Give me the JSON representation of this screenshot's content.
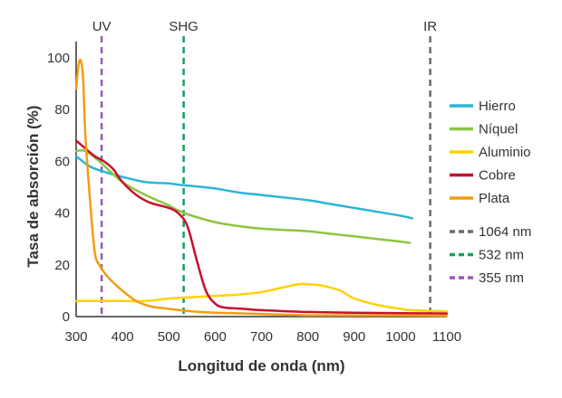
{
  "chart_data": {
    "type": "line",
    "title": "",
    "xlabel": "Longitud de onda (nm)",
    "ylabel": "Tasa de absorción (%)",
    "xlim": [
      300,
      1100
    ],
    "ylim": [
      0,
      100
    ],
    "xticks": [
      300,
      400,
      500,
      600,
      700,
      800,
      900,
      1000,
      1100
    ],
    "yticks": [
      0,
      20,
      40,
      60,
      80,
      100
    ],
    "grid": false,
    "legend_position": "right",
    "series": [
      {
        "name": "Hierro",
        "color": "#2bb5d8",
        "points": [
          [
            300,
            62
          ],
          [
            330,
            58
          ],
          [
            360,
            56
          ],
          [
            400,
            54
          ],
          [
            450,
            52
          ],
          [
            500,
            51.5
          ],
          [
            520,
            51
          ],
          [
            550,
            50.5
          ],
          [
            600,
            49.5
          ],
          [
            650,
            48
          ],
          [
            700,
            47
          ],
          [
            750,
            46
          ],
          [
            800,
            45
          ],
          [
            850,
            43.5
          ],
          [
            900,
            42
          ],
          [
            950,
            40.5
          ],
          [
            1000,
            39
          ],
          [
            1025,
            38
          ]
        ]
      },
      {
        "name": "Níquel",
        "color": "#8cc63f",
        "points": [
          [
            300,
            64
          ],
          [
            320,
            64
          ],
          [
            350,
            60
          ],
          [
            400,
            52
          ],
          [
            450,
            47
          ],
          [
            500,
            43
          ],
          [
            520,
            41
          ],
          [
            550,
            39
          ],
          [
            600,
            36.5
          ],
          [
            650,
            35
          ],
          [
            700,
            34
          ],
          [
            750,
            33.5
          ],
          [
            800,
            33
          ],
          [
            850,
            32
          ],
          [
            900,
            31
          ],
          [
            950,
            30
          ],
          [
            1000,
            29
          ],
          [
            1020,
            28.5
          ]
        ]
      },
      {
        "name": "Aluminio",
        "color": "#ffd200",
        "points": [
          [
            300,
            6
          ],
          [
            350,
            6
          ],
          [
            400,
            6
          ],
          [
            450,
            6
          ],
          [
            500,
            7
          ],
          [
            550,
            7.5
          ],
          [
            600,
            8
          ],
          [
            650,
            8.5
          ],
          [
            700,
            9.5
          ],
          [
            740,
            11
          ],
          [
            780,
            12.5
          ],
          [
            800,
            12.5
          ],
          [
            830,
            12
          ],
          [
            870,
            10
          ],
          [
            900,
            7
          ],
          [
            950,
            4.5
          ],
          [
            1000,
            3
          ],
          [
            1020,
            2.5
          ],
          [
            1100,
            2
          ]
        ]
      },
      {
        "name": "Cobre",
        "color": "#c8102e",
        "points": [
          [
            300,
            68
          ],
          [
            320,
            65
          ],
          [
            340,
            62
          ],
          [
            360,
            60
          ],
          [
            380,
            57
          ],
          [
            400,
            52
          ],
          [
            430,
            47
          ],
          [
            460,
            44
          ],
          [
            500,
            42
          ],
          [
            520,
            40
          ],
          [
            540,
            35
          ],
          [
            560,
            22
          ],
          [
            580,
            10
          ],
          [
            600,
            5
          ],
          [
            620,
            3.5
          ],
          [
            660,
            3
          ],
          [
            700,
            2.5
          ],
          [
            800,
            1.8
          ],
          [
            900,
            1.5
          ],
          [
            1000,
            1.3
          ],
          [
            1100,
            1.2
          ]
        ]
      },
      {
        "name": "Plata",
        "color": "#f39c12",
        "points": [
          [
            300,
            88
          ],
          [
            305,
            97
          ],
          [
            310,
            99
          ],
          [
            315,
            92
          ],
          [
            320,
            70
          ],
          [
            330,
            45
          ],
          [
            340,
            25
          ],
          [
            350,
            20
          ],
          [
            370,
            15
          ],
          [
            400,
            10
          ],
          [
            430,
            6
          ],
          [
            460,
            4
          ],
          [
            500,
            3
          ],
          [
            550,
            2
          ],
          [
            600,
            1.5
          ],
          [
            700,
            1
          ],
          [
            800,
            0.5
          ],
          [
            900,
            0.5
          ],
          [
            1000,
            0.5
          ],
          [
            1100,
            0.3
          ]
        ]
      }
    ],
    "markers": [
      {
        "label": "UV",
        "legend": "355 nm",
        "x": 355,
        "color": "#9b59b6"
      },
      {
        "label": "SHG",
        "legend": "532 nm",
        "x": 532,
        "color": "#1a9e5f"
      },
      {
        "label": "IR",
        "legend": "1064 nm",
        "x": 1064,
        "color": "#6b6b6b"
      }
    ]
  }
}
